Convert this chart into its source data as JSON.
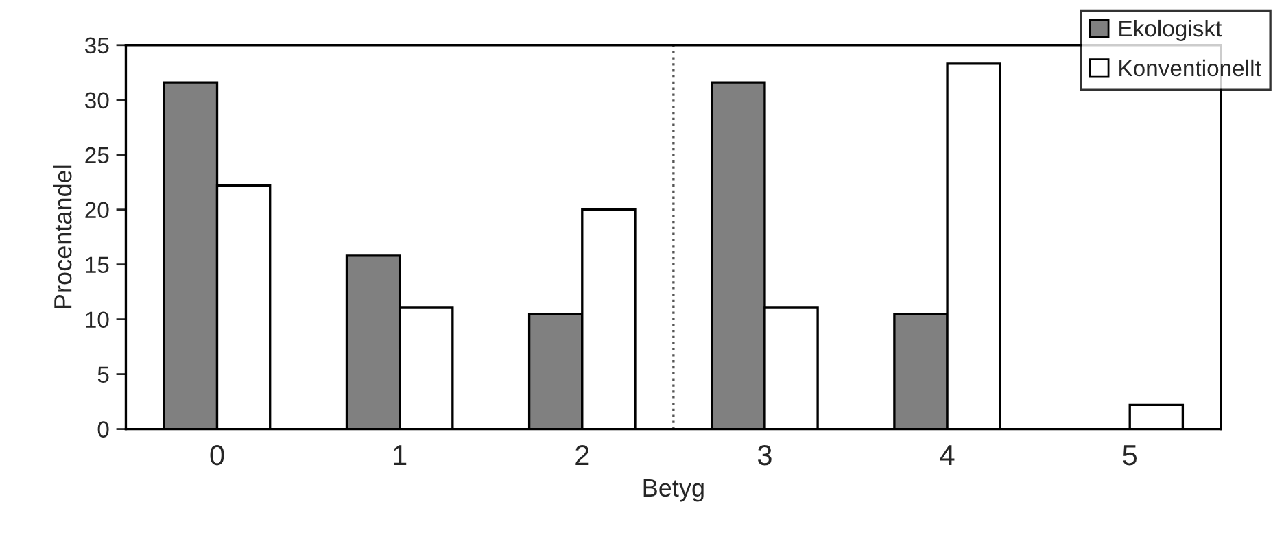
{
  "chart_data": {
    "type": "bar",
    "xlabel": "Betyg",
    "ylabel": "Procentandel",
    "categories": [
      "0",
      "1",
      "2",
      "3",
      "4",
      "5"
    ],
    "series": [
      {
        "name": "Ekologiskt",
        "color": "#808080",
        "values": [
          31.6,
          15.8,
          10.5,
          31.6,
          10.5,
          null
        ]
      },
      {
        "name": "Konventionellt",
        "color": "#ffffff",
        "values": [
          22.2,
          11.1,
          20.0,
          11.1,
          33.3,
          2.2
        ]
      }
    ],
    "ylim": [
      0,
      35
    ],
    "yticks": [
      0,
      5,
      10,
      15,
      20,
      25,
      30,
      35
    ],
    "grid": false,
    "legend": "top right"
  }
}
